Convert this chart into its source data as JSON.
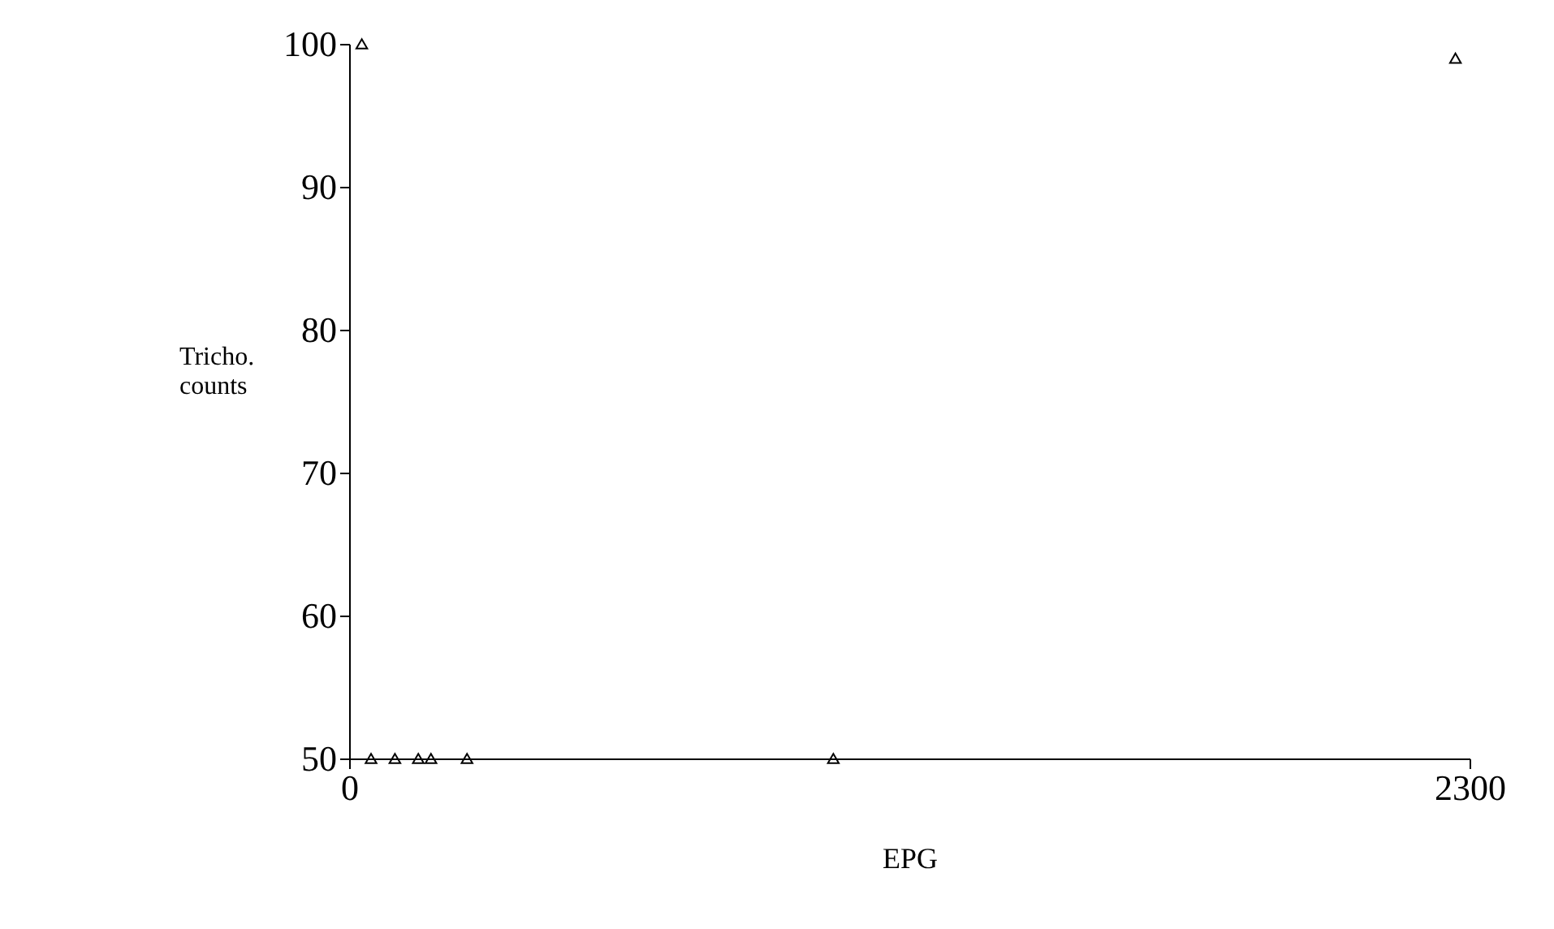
{
  "chart_data": {
    "type": "scatter",
    "xlabel": "EPG",
    "ylabel": "Tricho. counts",
    "x": [
      26,
      45,
      94,
      142,
      168,
      242,
      994,
      2271
    ],
    "series": [
      {
        "color": "#000000",
        "values": [
          100,
          50,
          50,
          50,
          50,
          50,
          50,
          99
        ]
      }
    ],
    "xlim": [
      0,
      2300
    ],
    "xticks": [
      0,
      2300
    ],
    "ylim": [
      50,
      100
    ],
    "yticks": [
      50,
      60,
      70,
      80,
      90,
      100
    ],
    "marker": "triangle",
    "grid": false,
    "legend": false
  }
}
